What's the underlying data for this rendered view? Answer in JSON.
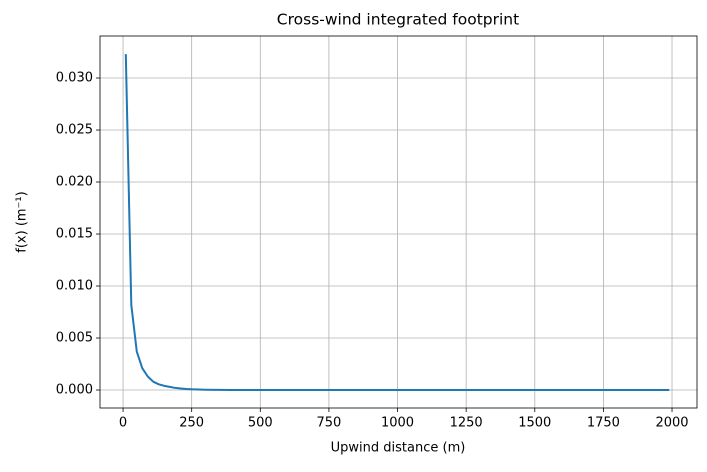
{
  "chart_data": {
    "type": "line",
    "title": "Cross-wind integrated footprint",
    "xlabel": "Upwind distance (m)",
    "ylabel": "f(x) (m⁻¹)",
    "x": [
      10,
      30,
      50,
      70,
      90,
      110,
      130,
      150,
      170,
      190,
      210,
      230,
      250,
      300,
      400,
      500,
      600,
      700,
      800,
      900,
      1000,
      1100,
      1200,
      1300,
      1400,
      1500,
      1600,
      1700,
      1800,
      1900,
      1990
    ],
    "values": [
      0.0323,
      0.0082,
      0.0037,
      0.0021,
      0.0013,
      0.0008,
      0.00055,
      0.0004,
      0.0003,
      0.0002,
      0.00015,
      0.0001,
      7e-05,
      3e-05,
      0,
      0,
      0,
      0,
      0,
      0,
      0,
      0,
      0,
      0,
      0,
      0,
      0,
      0,
      0,
      0,
      0
    ],
    "color": "#1f77b4",
    "xlim": [
      -84,
      2091
    ],
    "xticks": [
      0,
      250,
      500,
      750,
      1000,
      1250,
      1500,
      1750,
      2000
    ],
    "ylim": [
      -0.00173,
      0.03404
    ],
    "yticks": [
      {
        "value": 0,
        "label": "0.000"
      },
      {
        "value": 0.005,
        "label": "0.005"
      },
      {
        "value": 0.01,
        "label": "0.010"
      },
      {
        "value": 0.015,
        "label": "0.015"
      },
      {
        "value": 0.02,
        "label": "0.020"
      },
      {
        "value": 0.025,
        "label": "0.025"
      },
      {
        "value": 0.03,
        "label": "0.030"
      }
    ],
    "grid": true
  }
}
